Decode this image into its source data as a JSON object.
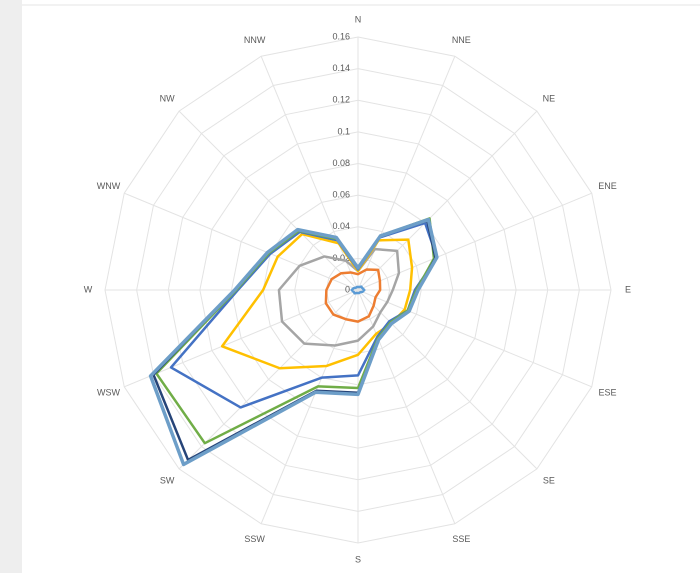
{
  "chart_data": {
    "type": "radar",
    "categories": [
      "N",
      "NNE",
      "NE",
      "ENE",
      "E",
      "ESE",
      "SE",
      "SSE",
      "S",
      "SSW",
      "SW",
      "WSW",
      "W",
      "WNW",
      "NW",
      "NNW"
    ],
    "ylim": [
      0,
      0.16
    ],
    "yticks": [
      0,
      0.02,
      0.04,
      0.06,
      0.08,
      0.1,
      0.12,
      0.14,
      0.16
    ],
    "grid": true,
    "series": [
      {
        "color": "#5b9bd5",
        "values": [
          0.002,
          0.002,
          0.003,
          0.003,
          0.004,
          0.003,
          0.002,
          0.002,
          0.002,
          0.002,
          0.003,
          0.003,
          0.004,
          0.003,
          0.002,
          0.002
        ]
      },
      {
        "color": "#ed7d31",
        "values": [
          0.01,
          0.014,
          0.018,
          0.015,
          0.014,
          0.012,
          0.014,
          0.018,
          0.02,
          0.02,
          0.022,
          0.022,
          0.02,
          0.018,
          0.015,
          0.012
        ]
      },
      {
        "color": "#a5a5a5",
        "values": [
          0.012,
          0.028,
          0.035,
          0.028,
          0.022,
          0.02,
          0.02,
          0.025,
          0.032,
          0.038,
          0.048,
          0.052,
          0.05,
          0.04,
          0.03,
          0.02
        ]
      },
      {
        "color": "#ffc000",
        "values": [
          0.012,
          0.034,
          0.045,
          0.037,
          0.033,
          0.032,
          0.03,
          0.03,
          0.041,
          0.052,
          0.07,
          0.093,
          0.06,
          0.055,
          0.05,
          0.032
        ]
      },
      {
        "color": "#4472c4",
        "values": [
          0.013,
          0.036,
          0.06,
          0.054,
          0.036,
          0.034,
          0.028,
          0.032,
          0.054,
          0.06,
          0.105,
          0.128,
          0.076,
          0.06,
          0.052,
          0.034
        ]
      },
      {
        "color": "#70ad47",
        "values": [
          0.014,
          0.037,
          0.064,
          0.052,
          0.037,
          0.034,
          0.029,
          0.033,
          0.062,
          0.066,
          0.137,
          0.138,
          0.077,
          0.061,
          0.053,
          0.035
        ]
      },
      {
        "color": "#264478",
        "values": [
          0.014,
          0.037,
          0.062,
          0.053,
          0.038,
          0.035,
          0.03,
          0.034,
          0.065,
          0.069,
          0.152,
          0.14,
          0.078,
          0.062,
          0.054,
          0.036
        ]
      },
      {
        "color": "#6d9ec8",
        "values": [
          0.014,
          0.037,
          0.063,
          0.054,
          0.038,
          0.035,
          0.03,
          0.034,
          0.066,
          0.07,
          0.156,
          0.142,
          0.078,
          0.062,
          0.054,
          0.036
        ]
      }
    ]
  }
}
